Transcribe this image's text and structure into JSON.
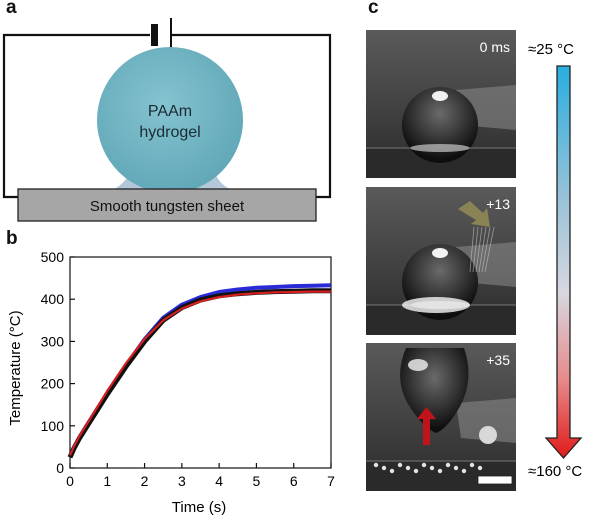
{
  "panels": {
    "a": {
      "letter": "a",
      "sphere_label_line1": "PAAm",
      "sphere_label_line2": "hydrogel",
      "sheet_label": "Smooth tungsten sheet"
    },
    "b": {
      "letter": "b"
    },
    "c": {
      "letter": "c",
      "frames": [
        {
          "time_label": "0 ms"
        },
        {
          "time_label": "+13"
        },
        {
          "time_label": "+35"
        }
      ],
      "scale_top_label": "≈25 °C",
      "scale_bottom_label": "≈160 °C"
    }
  },
  "colors": {
    "hydrogel": "#6fb3c2",
    "sheet": "#a6a6a6",
    "series_black": "#111111",
    "series_blue": "#2a2ad6",
    "series_red": "#d62020",
    "scale_cold": "#29aee0",
    "scale_hot": "#e01a1a",
    "arrow_olive": "#8a8355",
    "arrow_red": "#c0141c"
  },
  "chart_data": {
    "type": "line",
    "xlabel": "Time (s)",
    "ylabel": "Temperature (°C)",
    "xlim": [
      0,
      7
    ],
    "ylim": [
      0,
      500
    ],
    "xticks": [
      0,
      1,
      2,
      3,
      4,
      5,
      6,
      7
    ],
    "yticks": [
      0,
      100,
      200,
      300,
      400,
      500
    ],
    "grid": false,
    "legend": "none",
    "x": [
      0,
      0.1,
      0.25,
      0.5,
      0.75,
      1,
      1.5,
      2,
      2.5,
      3,
      3.5,
      4,
      4.5,
      5,
      5.5,
      6,
      6.5,
      7
    ],
    "series": [
      {
        "color": "#111111",
        "values": [
          25,
          45,
          70,
          105,
          140,
          175,
          240,
          300,
          350,
          380,
          398,
          408,
          413,
          416,
          418,
          419,
          420,
          420
        ]
      },
      {
        "color": "#2a2ad6",
        "values": [
          28,
          48,
          72,
          108,
          143,
          178,
          243,
          305,
          356,
          387,
          405,
          417,
          423,
          427,
          429,
          431,
          432,
          433
        ]
      },
      {
        "color": "#d62020",
        "values": [
          30,
          50,
          75,
          111,
          147,
          183,
          248,
          306,
          350,
          378,
          395,
          405,
          411,
          414,
          416,
          417,
          418,
          418
        ]
      }
    ]
  }
}
